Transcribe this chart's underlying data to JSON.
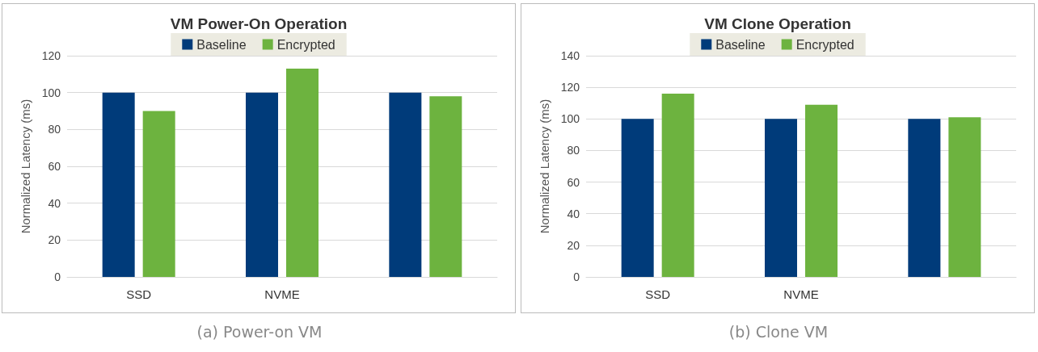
{
  "chart_data": [
    {
      "type": "bar",
      "title": "VM Power-On Operation",
      "ylabel": "Normalized Latency (ms)",
      "categories": [
        "SSD",
        "NVME",
        null
      ],
      "series": [
        {
          "name": "Baseline",
          "color": "#003b7a",
          "values": [
            100,
            100,
            100
          ]
        },
        {
          "name": "Encrypted",
          "color": "#6db33f",
          "values": [
            90,
            113,
            98
          ]
        }
      ],
      "ylim": [
        0,
        120
      ],
      "yticks": [
        0,
        20,
        40,
        60,
        80,
        100,
        120
      ],
      "grid": "y",
      "legend": "top",
      "annotations": [
        "(a) Power-on VM"
      ]
    },
    {
      "type": "bar",
      "title": "VM Clone Operation",
      "ylabel": "Normalized Latency (ms)",
      "categories": [
        "SSD",
        "NVME",
        null
      ],
      "series": [
        {
          "name": "Baseline",
          "color": "#003b7a",
          "values": [
            100,
            100,
            100
          ]
        },
        {
          "name": "Encrypted",
          "color": "#6db33f",
          "values": [
            116,
            109,
            101
          ]
        }
      ],
      "ylim": [
        0,
        140
      ],
      "yticks": [
        0,
        20,
        40,
        60,
        80,
        100,
        120,
        140
      ],
      "grid": "y",
      "legend": "top",
      "annotations": [
        "(b) Clone VM"
      ]
    }
  ]
}
